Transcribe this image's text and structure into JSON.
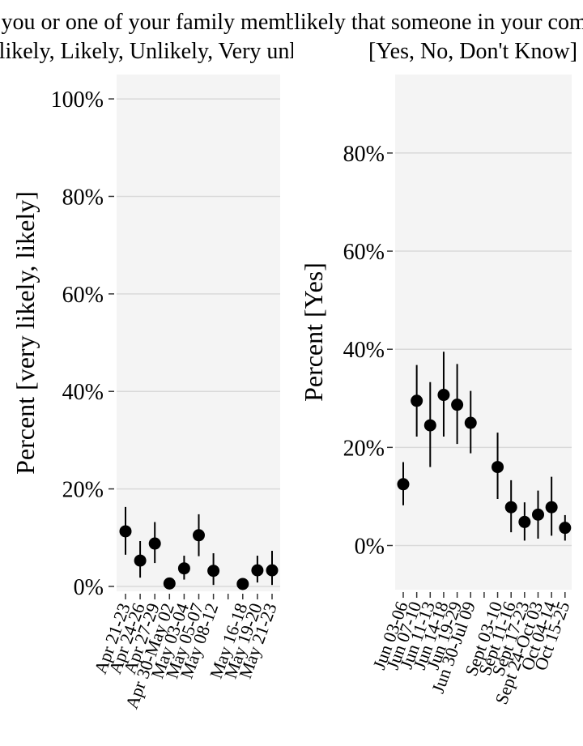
{
  "chart_data": [
    {
      "type": "scatter",
      "title_lines": [
        "Do you or one of your family members",
        "[Very likely, Likely, Unlikely, Very unlikely]"
      ],
      "ylabel": "Percent [very likely, likely]",
      "xlabel": "",
      "ylim": [
        -0.01,
        1.05
      ],
      "yticks": [
        0,
        0.2,
        0.4,
        0.6,
        0.8,
        1.0
      ],
      "ytick_labels": [
        "0%",
        "20%",
        "40%",
        "60%",
        "80%",
        "100%"
      ],
      "grid": true,
      "error_bars": true,
      "categories": [
        "Apr 21-23",
        "Apr 24-26",
        "Apr 27-29",
        "Apr 30-May 02",
        "May 03-04",
        "May 05-07",
        "May 08-12",
        "",
        "May 16-18",
        "May 19-20",
        "May 21-23"
      ],
      "values": [
        0.113,
        0.053,
        0.088,
        0.006,
        0.037,
        0.105,
        0.032,
        null,
        0.005,
        0.033,
        0.033
      ],
      "lower": [
        0.065,
        0.018,
        0.048,
        0.0,
        0.014,
        0.062,
        0.003,
        null,
        0.0,
        0.008,
        0.003
      ],
      "upper": [
        0.163,
        0.093,
        0.132,
        0.01,
        0.063,
        0.148,
        0.068,
        null,
        0.01,
        0.063,
        0.073
      ]
    },
    {
      "type": "scatter",
      "title_lines": [
        "Is it likely that someone in your community will",
        "[Yes, No, Don't Know]"
      ],
      "ylabel": "Percent [Yes]",
      "xlabel": "",
      "ylim": [
        -0.09,
        0.96
      ],
      "yticks": [
        0,
        0.2,
        0.4,
        0.6,
        0.8
      ],
      "ytick_labels": [
        "0%",
        "20%",
        "40%",
        "60%",
        "80%"
      ],
      "grid": true,
      "error_bars": true,
      "categories": [
        "Jun 03-06",
        "Jun 07-10",
        "Jun 11-13",
        "Jun 14-18",
        "Jun 19-29",
        "Jun 30-Jul 09",
        "",
        "Sept 03-10",
        "Sept 11-16",
        "Sept 17-23",
        "Sept 24-Oct 03",
        "Oct 04-14",
        "Oct 15-25"
      ],
      "values": [
        0.125,
        0.295,
        0.245,
        0.307,
        0.287,
        0.25,
        null,
        0.16,
        0.078,
        0.048,
        0.063,
        0.078,
        0.036
      ],
      "lower": [
        0.082,
        0.222,
        0.16,
        0.222,
        0.207,
        0.188,
        null,
        0.095,
        0.027,
        0.01,
        0.014,
        0.02,
        0.01
      ],
      "upper": [
        0.17,
        0.368,
        0.333,
        0.395,
        0.37,
        0.315,
        null,
        0.23,
        0.133,
        0.088,
        0.112,
        0.14,
        0.062
      ]
    }
  ]
}
